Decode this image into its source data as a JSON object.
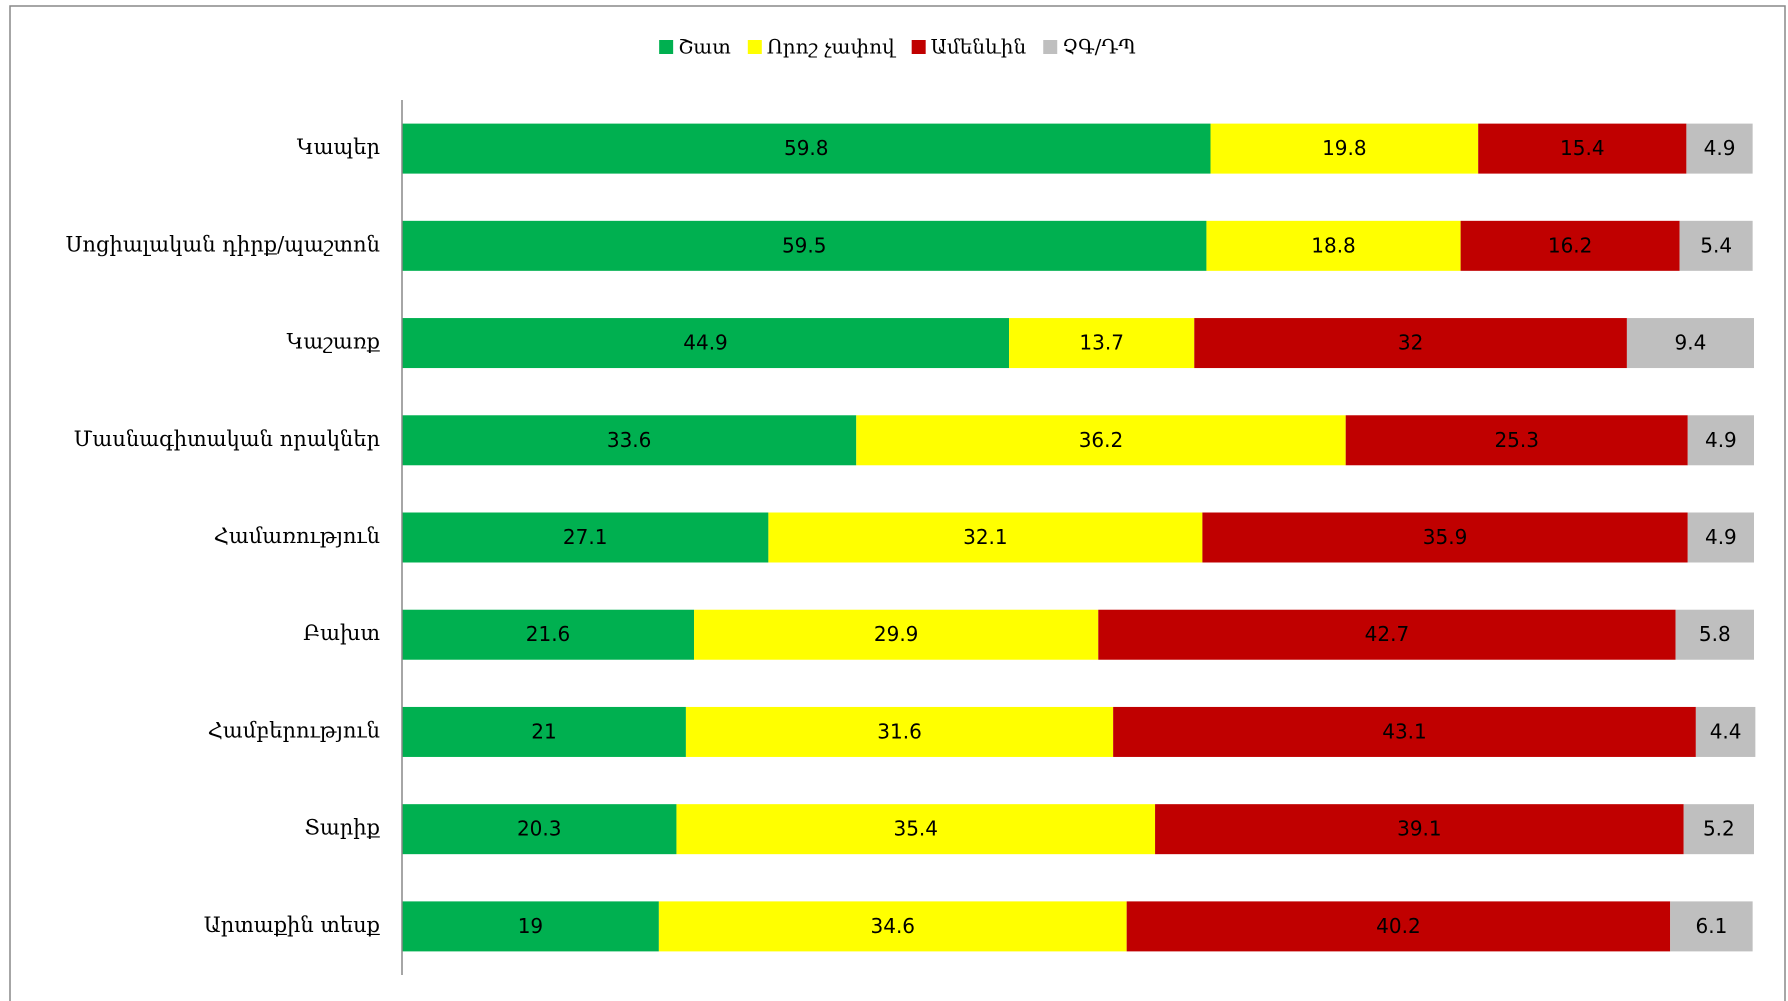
{
  "chart_data": {
    "type": "stacked_barh",
    "categories": [
      "Կապեր",
      "Սոցիալական դիրք/պաշտոն",
      "Կաշառք",
      "Մասնագիտական որակներ",
      "Համառություն",
      "Բախտ",
      "Համբերություն",
      "Տարիք",
      "Արտաքին տեսք"
    ],
    "series": [
      {
        "name": "Շատ",
        "color": "#00b050",
        "values": [
          59.8,
          59.5,
          44.9,
          33.6,
          27.1,
          21.6,
          21,
          20.3,
          19
        ]
      },
      {
        "name": "Որոշ չափով",
        "color": "#ffff00",
        "values": [
          19.8,
          18.8,
          13.7,
          36.2,
          32.1,
          29.9,
          31.6,
          35.4,
          34.6
        ]
      },
      {
        "name": "Ամենևին",
        "color": "#c00000",
        "values": [
          15.4,
          16.2,
          32,
          25.3,
          35.9,
          42.7,
          43.1,
          39.1,
          40.2
        ]
      },
      {
        "name": "ՉԳ/ԴՊ",
        "color": "#bfbfbf",
        "values": [
          4.9,
          5.4,
          9.4,
          4.9,
          4.9,
          5.8,
          4.4,
          5.2,
          6.1
        ]
      }
    ],
    "xlim": [
      0,
      100
    ],
    "legend": "top"
  }
}
